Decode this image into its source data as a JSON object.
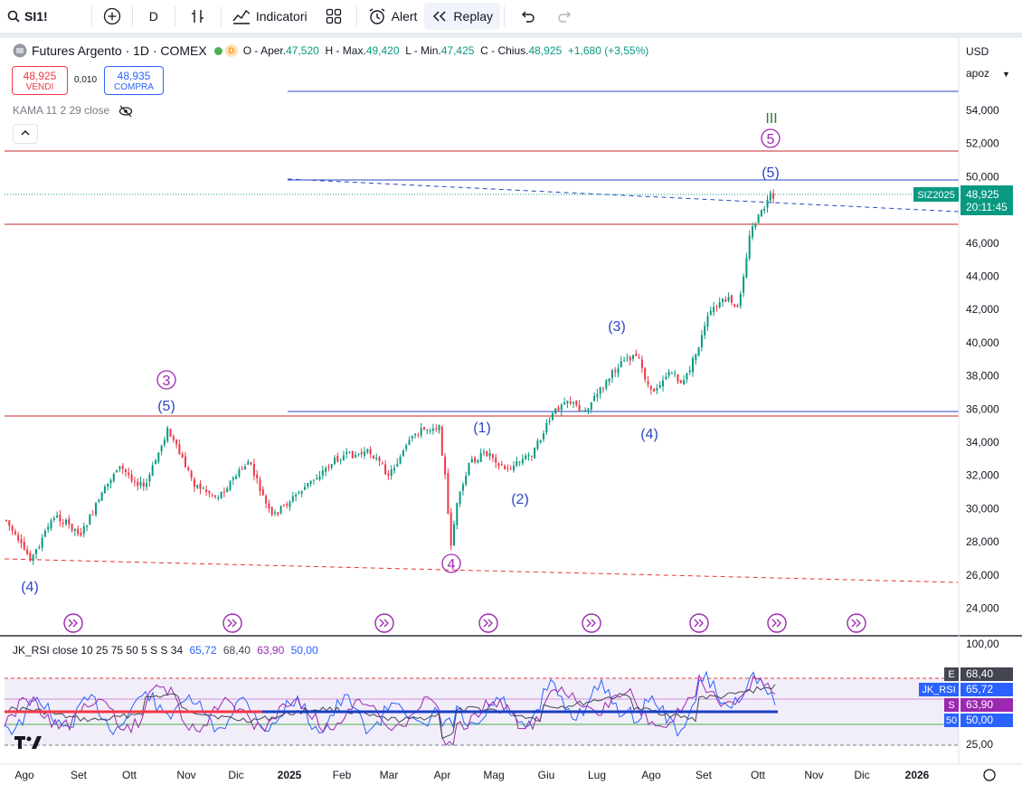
{
  "toolbar": {
    "symbol": "SI1!",
    "interval": "D",
    "indicators_label": "Indicatori",
    "alert_label": "Alert",
    "replay_label": "Replay"
  },
  "legend": {
    "title": "Futures Argento · 1D · COMEX",
    "badge": "D",
    "open_label": "O - Aper.",
    "open": "47,520",
    "high_label": "H - Max.",
    "high": "49,420",
    "low_label": "L - Min.",
    "low": "47,425",
    "close_label": "C - Chius.",
    "close": "48,925",
    "change": "+1,680 (+3,55%)"
  },
  "trade": {
    "sell_price": "48,925",
    "sell_label": "VENDI",
    "spread": "0,010",
    "buy_price": "48,935",
    "buy_label": "COMPRA"
  },
  "kama_label": "KAMA 11 2 29 close",
  "rsi_legend": {
    "label": "JK_RSI close 10 25 75 50 5 S S 34",
    "v1": "65,72",
    "v2": "68,40",
    "v3": "63,90",
    "v4": "50,00"
  },
  "axis": {
    "currency": "USD",
    "units": "apoz",
    "price_ticks": [
      "54,000",
      "52,000",
      "50,000",
      "48,000",
      "46,000",
      "44,000",
      "42,000",
      "40,000",
      "38,000",
      "36,000",
      "34,000",
      "32,000",
      "30,000",
      "28,000",
      "26,000",
      "24,000"
    ],
    "rsi_ticks": [
      "100,00",
      "25,00"
    ],
    "time_ticks": [
      "Ago",
      "Set",
      "Ott",
      "Nov",
      "Dic",
      "2025",
      "Feb",
      "Mar",
      "Apr",
      "Mag",
      "Giu",
      "Lug",
      "Ago",
      "Set",
      "Ott",
      "Nov",
      "Dic",
      "2026"
    ]
  },
  "price_badge": {
    "symbol": "SIZ2025",
    "price": "48,925",
    "countdown": "20:11:45"
  },
  "rsi_badges": [
    {
      "tag": "E",
      "value": "68,40",
      "color": "#434651"
    },
    {
      "tag": "JK_RSI",
      "value": "65,72",
      "color": "#2962ff"
    },
    {
      "tag": "S",
      "value": "63,90",
      "color": "#9c27b0"
    },
    {
      "tag": "50",
      "value": "50,00",
      "color": "#2962ff"
    }
  ],
  "wave_labels": [
    {
      "text": "(4)",
      "color": "#2a47c1"
    },
    {
      "text": "3",
      "color": "#9c27b0"
    },
    {
      "text": "(5)",
      "color": "#2a47c1"
    },
    {
      "text": "4",
      "color": "#9c27b0"
    },
    {
      "text": "(1)",
      "color": "#2a47c1"
    },
    {
      "text": "(2)",
      "color": "#2a47c1"
    },
    {
      "text": "(3)",
      "color": "#2a47c1"
    },
    {
      "text": "(4)",
      "color": "#2a47c1"
    },
    {
      "text": "(5)",
      "color": "#2a47c1"
    },
    {
      "text": "5",
      "color": "#9c27b0"
    },
    {
      "text": "III",
      "color": "#2e7d32"
    }
  ],
  "colors": {
    "up": "#089981",
    "down": "#f23645",
    "accent": "#2962ff"
  }
}
